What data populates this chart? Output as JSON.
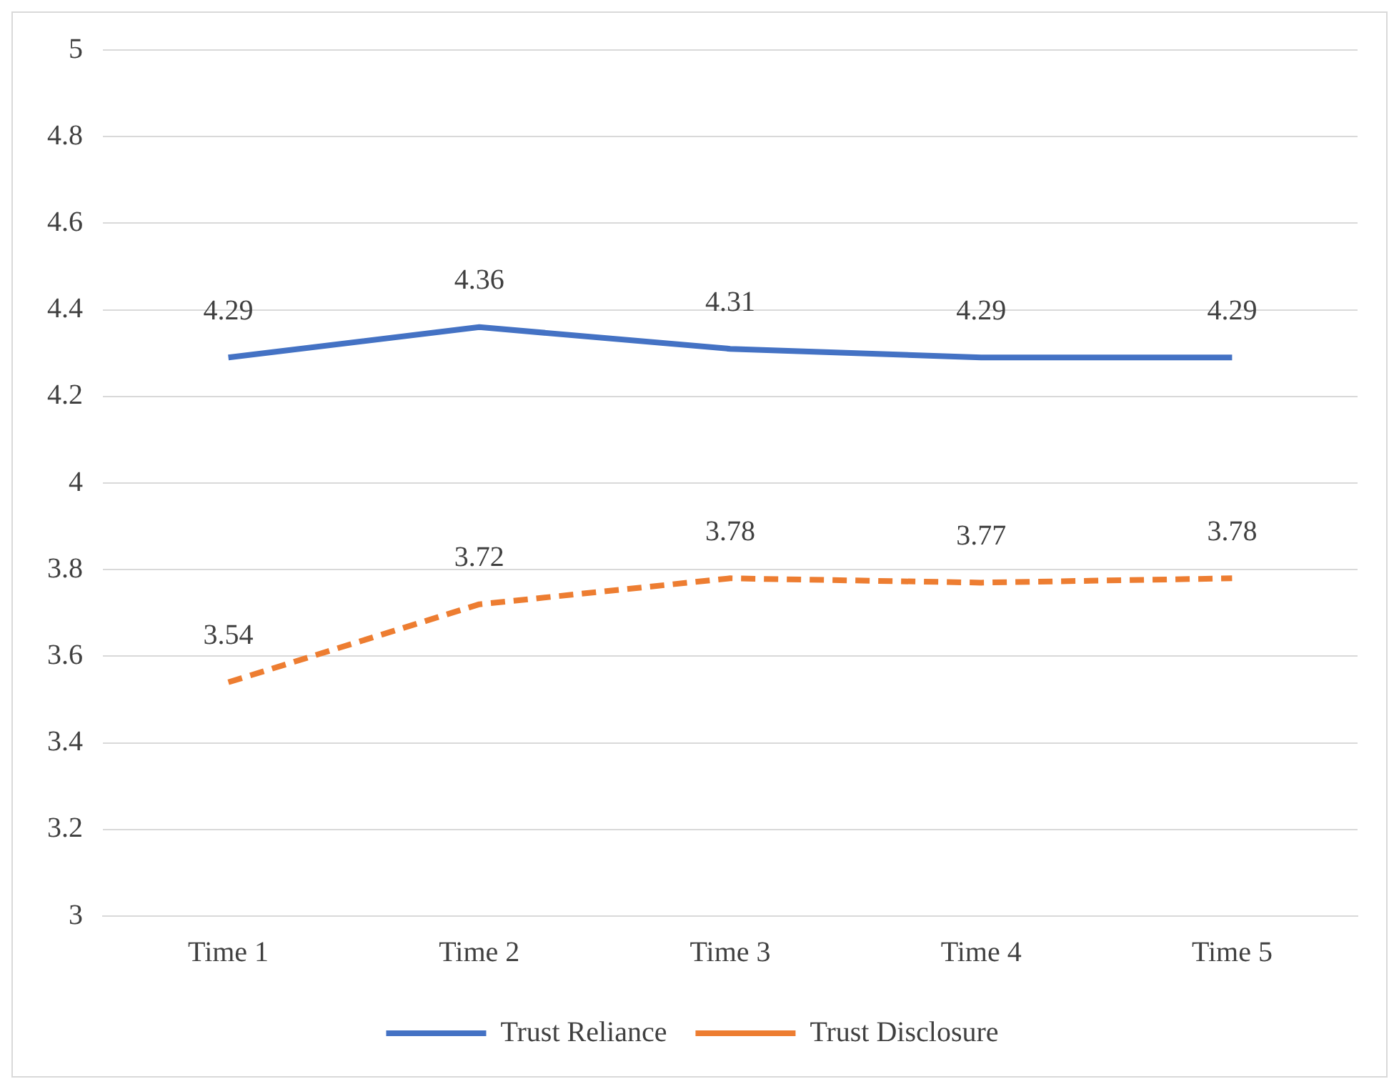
{
  "chart_data": {
    "type": "line",
    "categories": [
      "Time 1",
      "Time 2",
      "Time 3",
      "Time 4",
      "Time 5"
    ],
    "series": [
      {
        "name": "Trust Reliance",
        "color": "#4472c4",
        "values": [
          4.29,
          4.36,
          4.31,
          4.29,
          4.29
        ],
        "line_style": "solid"
      },
      {
        "name": "Trust Disclosure",
        "color": "#ed7d31",
        "values": [
          3.54,
          3.72,
          3.78,
          3.77,
          3.78
        ],
        "line_style": "dashed"
      }
    ],
    "ylim": [
      3,
      5
    ],
    "yticks": [
      3,
      3.2,
      3.4,
      3.6,
      3.8,
      4,
      4.2,
      4.4,
      4.6,
      4.8,
      5
    ],
    "grid": "y",
    "legend": "bottom",
    "data_labels": true,
    "marker": "none"
  }
}
